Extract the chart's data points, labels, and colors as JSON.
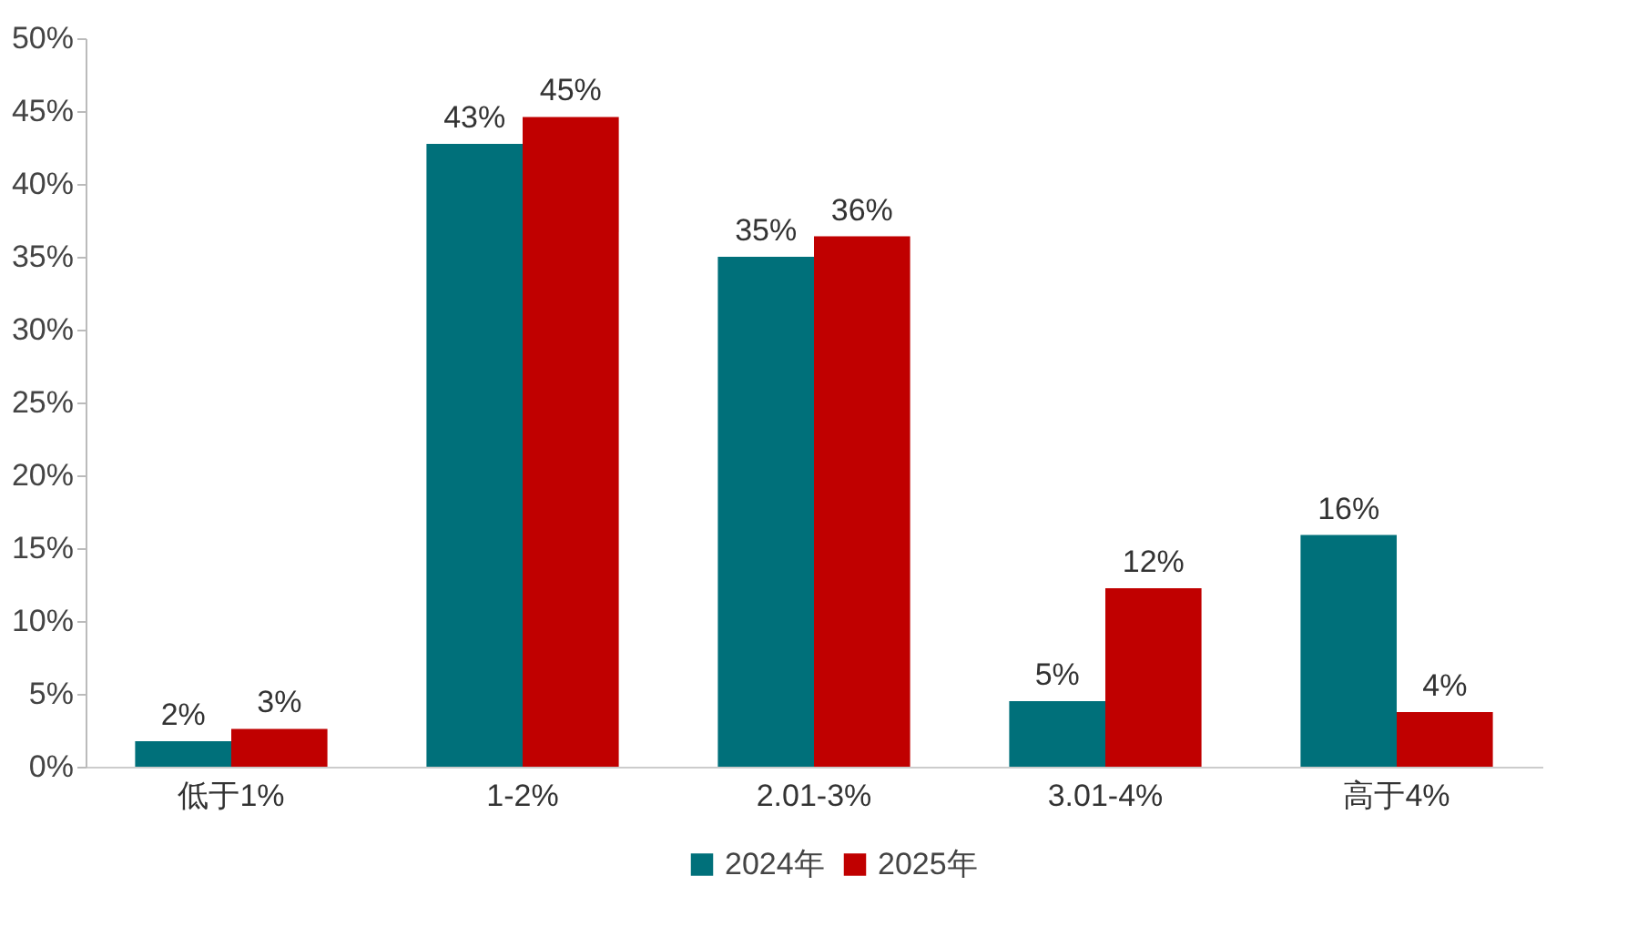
{
  "chart_data": {
    "type": "bar",
    "categories": [
      "低于1%",
      "1-2%",
      "2.01-3%",
      "3.01-4%",
      "高于4%"
    ],
    "series": [
      {
        "name": "2024年",
        "color": "#00707a",
        "values": [
          1.75,
          42.75,
          35,
          4.5,
          15.9
        ],
        "value_labels": [
          "2%",
          "43%",
          "35%",
          "5%",
          "16%"
        ]
      },
      {
        "name": "2025年",
        "color": "#c00000",
        "values": [
          2.6,
          44.6,
          36.4,
          12.25,
          3.75
        ],
        "value_labels": [
          "3%",
          "45%",
          "36%",
          "12%",
          "4%"
        ]
      }
    ],
    "ylim": [
      0,
      50
    ],
    "yticks": [
      {
        "value": 0,
        "label": "0%"
      },
      {
        "value": 5,
        "label": "5%"
      },
      {
        "value": 10,
        "label": "10%"
      },
      {
        "value": 15,
        "label": "15%"
      },
      {
        "value": 20,
        "label": "20%"
      },
      {
        "value": 25,
        "label": "25%"
      },
      {
        "value": 30,
        "label": "30%"
      },
      {
        "value": 35,
        "label": "35%"
      },
      {
        "value": 40,
        "label": "40%"
      },
      {
        "value": 45,
        "label": "45%"
      },
      {
        "value": 50,
        "label": "50%"
      }
    ],
    "grid": false,
    "legend": "bottom"
  }
}
